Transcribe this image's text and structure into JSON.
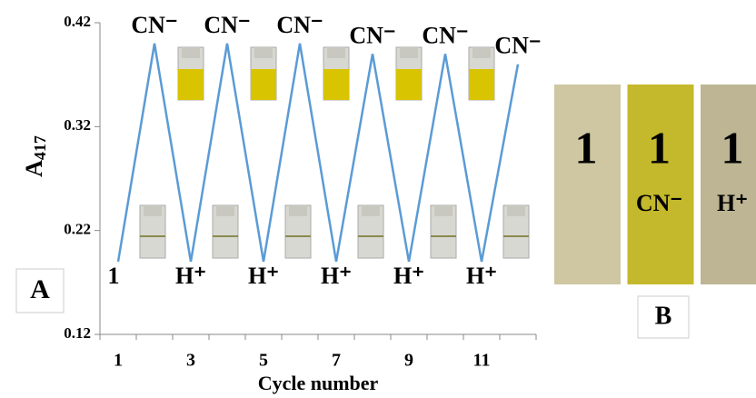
{
  "chart_data": {
    "type": "line",
    "categories": [
      "1",
      null,
      "3",
      null,
      "5",
      null,
      "7",
      null,
      "9",
      null,
      "11",
      null
    ],
    "series": [
      {
        "color": "#5b9bd5",
        "values": [
          0.19,
          0.4,
          0.19,
          0.4,
          0.19,
          0.4,
          0.19,
          0.39,
          0.19,
          0.39,
          0.19,
          0.38
        ]
      }
    ],
    "ylim": [
      0.12,
      0.42
    ],
    "yticks": [
      0.12,
      0.22,
      0.32,
      0.42
    ],
    "y_label": "A",
    "y_label_sub": "417",
    "x_label": "Cycle number",
    "point_labels": [
      "1",
      "CN⁻",
      "H⁺",
      "CN⁻",
      "H⁺",
      "CN⁻",
      "H⁺",
      "CN⁻",
      "H⁺",
      "CN⁻",
      "H⁺",
      "CN⁻"
    ],
    "panel_label": "A"
  },
  "panel_b": {
    "label": "B",
    "strips": [
      {
        "text": "1",
        "color": "#cfc7a2"
      },
      {
        "text": "1",
        "sub": "CN⁻",
        "color": "#c4b82c"
      },
      {
        "text": "1",
        "sub": "H⁺",
        "color": "#bdb593"
      }
    ]
  }
}
